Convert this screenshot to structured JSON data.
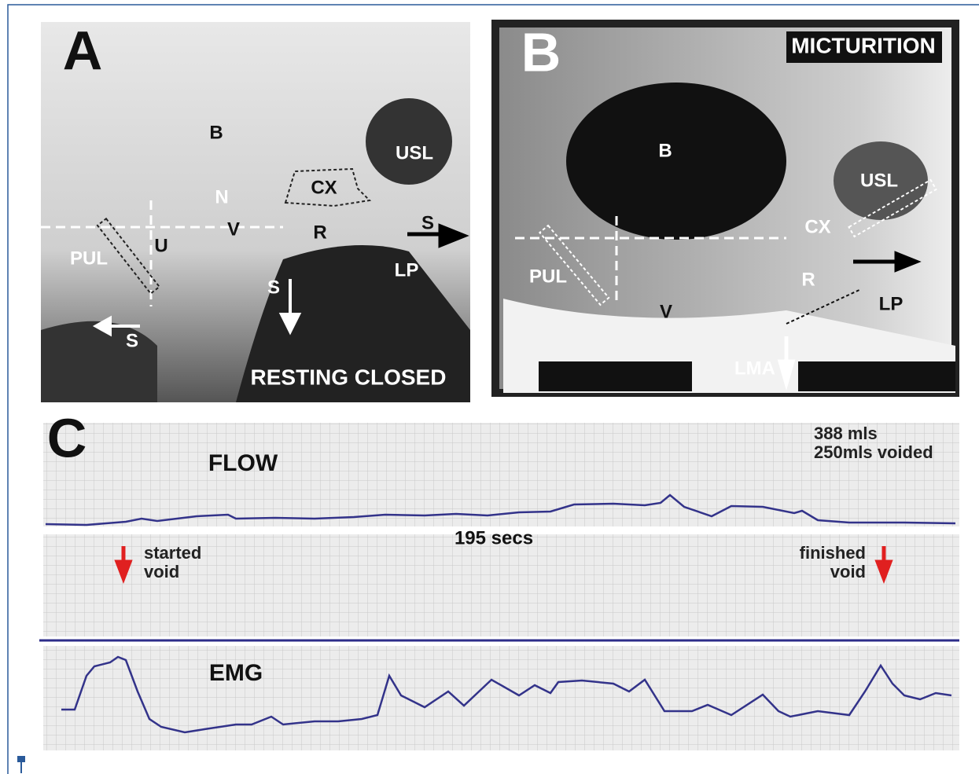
{
  "panel_a": {
    "letter": "A",
    "caption": "RESTING CLOSED",
    "labels": [
      "B",
      "N",
      "V",
      "U",
      "R",
      "CX",
      "USL",
      "PUL",
      "S",
      "S",
      "S",
      "LP"
    ]
  },
  "panel_b": {
    "letter": "B",
    "title": "MICTURITION",
    "labels": [
      "B",
      "USL",
      "CX",
      "PUL",
      "V",
      "R",
      "LP",
      "LMA"
    ]
  },
  "panel_c": {
    "letter": "C",
    "flow_label": "FLOW",
    "volume": "388 mls",
    "voided": "250mls voided",
    "duration": "195 secs",
    "start_label": [
      "started",
      "void"
    ],
    "finish_label": [
      "finished",
      "void"
    ],
    "emg_label": "EMG"
  }
}
